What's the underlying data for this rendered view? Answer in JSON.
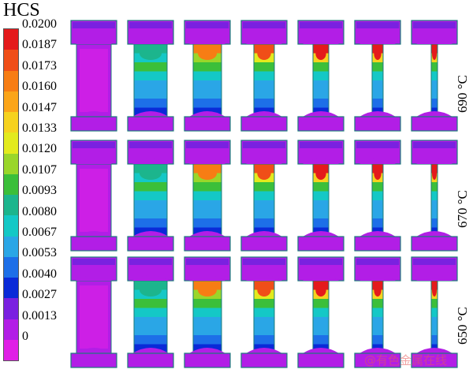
{
  "legend": {
    "title": "HCS",
    "labels": [
      "0.0200",
      "0.0187",
      "0.0173",
      "0.0160",
      "0.0147",
      "0.0133",
      "0.0120",
      "0.0107",
      "0.0093",
      "0.0080",
      "0.0067",
      "0.0053",
      "0.0040",
      "0.0027",
      "0.0013",
      "0"
    ],
    "colors": [
      "#e41a1c",
      "#f04e18",
      "#f77d14",
      "#fba519",
      "#f6d21e",
      "#e3ea1d",
      "#9ad62a",
      "#3bbf3a",
      "#1cb58d",
      "#14c8c6",
      "#2aa6e6",
      "#1d6fe8",
      "#0a2ad8",
      "#7a21e0",
      "#b21ee6",
      "#e01fe6"
    ]
  },
  "rows": [
    {
      "label": "690 °C"
    },
    {
      "label": "670 °C"
    },
    {
      "label": "650 °C"
    }
  ],
  "watermark": "@有色金属在线"
}
